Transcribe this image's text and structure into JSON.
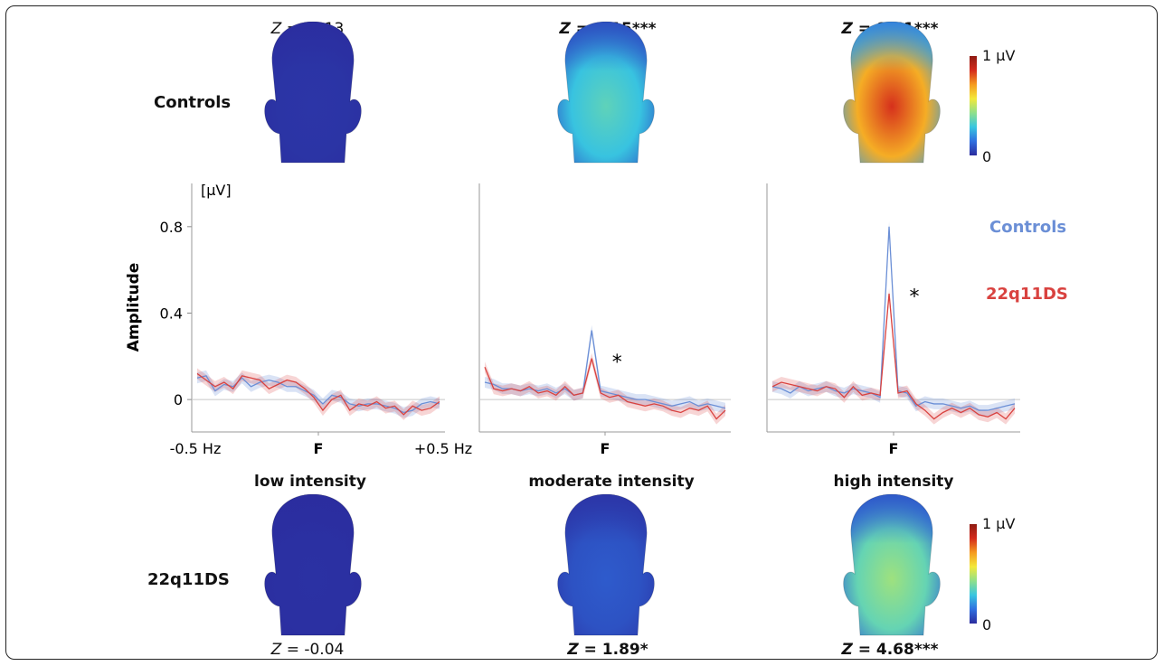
{
  "groups": {
    "top": "Controls",
    "bottom": "22q11DS"
  },
  "conditions": [
    "low intensity",
    "moderate intensity",
    "high intensity"
  ],
  "z_scores": {
    "controls": [
      {
        "value": "-0.13",
        "stars": "",
        "significant": false
      },
      {
        "value": "4.15",
        "stars": "***",
        "significant": true
      },
      {
        "value": "9.61",
        "stars": "***",
        "significant": true
      }
    ],
    "patients": [
      {
        "value": "-0.04",
        "stars": "",
        "significant": false
      },
      {
        "value": "1.89",
        "stars": "*",
        "significant": true
      },
      {
        "value": "4.68",
        "stars": "***",
        "significant": true
      }
    ]
  },
  "z_prefix": "Z",
  "colorbar": {
    "max_label": "1 µV",
    "min_label": "0",
    "colors": [
      "#2b2c9e",
      "#2f6fe0",
      "#38c6e0",
      "#8fe08a",
      "#f3e83a",
      "#f59a1f",
      "#d42a1c",
      "#8e1a12"
    ]
  },
  "topomaps": {
    "controls": [
      0.02,
      0.35,
      0.85
    ],
    "patients": [
      0.01,
      0.1,
      0.45
    ]
  },
  "chart_data": {
    "type": "line",
    "ylabel": "Amplitude",
    "unit_label": "[µV]",
    "ylim": [
      -0.15,
      1.0
    ],
    "yticks": [
      0,
      0.4,
      0.8
    ],
    "x_tick_labels": {
      "left": "-0.5 Hz",
      "center": "F",
      "right": "+0.5 Hz"
    },
    "legend": [
      "Controls",
      "22q11DS"
    ],
    "series_colors": {
      "Controls": "#6b8fd6",
      "22q11DS": "#d9423f"
    },
    "x_range": [
      -0.5,
      0.5
    ],
    "panels": [
      {
        "condition": "low intensity",
        "significance": "",
        "series": [
          {
            "name": "Controls",
            "values": [
              0.1,
              0.11,
              0.04,
              0.07,
              0.06,
              0.1,
              0.06,
              0.08,
              0.09,
              0.08,
              0.06,
              0.06,
              0.04,
              0.02,
              -0.02,
              0.02,
              0.01,
              -0.02,
              -0.03,
              -0.02,
              -0.02,
              -0.03,
              -0.04,
              -0.06,
              -0.05,
              -0.02,
              -0.01,
              -0.02
            ]
          },
          {
            "name": "22q11DS",
            "values": [
              0.12,
              0.09,
              0.06,
              0.08,
              0.05,
              0.11,
              0.1,
              0.09,
              0.05,
              0.07,
              0.09,
              0.08,
              0.05,
              0.01,
              -0.05,
              0.0,
              0.02,
              -0.05,
              -0.02,
              -0.03,
              -0.01,
              -0.04,
              -0.03,
              -0.07,
              -0.03,
              -0.05,
              -0.04,
              -0.01
            ]
          }
        ]
      },
      {
        "condition": "moderate intensity",
        "significance": "*",
        "series": [
          {
            "name": "Controls",
            "values": [
              0.08,
              0.07,
              0.05,
              0.05,
              0.04,
              0.05,
              0.04,
              0.05,
              0.03,
              0.05,
              0.02,
              0.03,
              0.32,
              0.04,
              0.03,
              0.02,
              0.01,
              0.0,
              0.0,
              -0.01,
              -0.02,
              -0.03,
              -0.02,
              -0.01,
              -0.03,
              -0.02,
              -0.03,
              -0.04
            ]
          },
          {
            "name": "22q11DS",
            "values": [
              0.15,
              0.05,
              0.04,
              0.05,
              0.04,
              0.06,
              0.03,
              0.04,
              0.02,
              0.06,
              0.02,
              0.03,
              0.19,
              0.03,
              0.01,
              0.02,
              -0.01,
              -0.02,
              -0.03,
              -0.02,
              -0.03,
              -0.05,
              -0.06,
              -0.04,
              -0.05,
              -0.03,
              -0.09,
              -0.05
            ]
          }
        ]
      },
      {
        "condition": "high intensity",
        "significance": "*",
        "series": [
          {
            "name": "Controls",
            "values": [
              0.06,
              0.05,
              0.03,
              0.06,
              0.04,
              0.05,
              0.06,
              0.04,
              0.03,
              0.05,
              0.04,
              0.03,
              0.01,
              0.8,
              0.04,
              0.03,
              -0.03,
              -0.01,
              -0.02,
              -0.02,
              -0.03,
              -0.04,
              -0.03,
              -0.05,
              -0.05,
              -0.04,
              -0.03,
              -0.02
            ]
          },
          {
            "name": "22q11DS",
            "values": [
              0.06,
              0.08,
              0.07,
              0.06,
              0.05,
              0.04,
              0.06,
              0.05,
              0.01,
              0.06,
              0.02,
              0.03,
              0.02,
              0.49,
              0.03,
              0.04,
              -0.02,
              -0.05,
              -0.09,
              -0.06,
              -0.04,
              -0.06,
              -0.04,
              -0.07,
              -0.08,
              -0.06,
              -0.09,
              -0.04
            ]
          }
        ]
      }
    ]
  }
}
